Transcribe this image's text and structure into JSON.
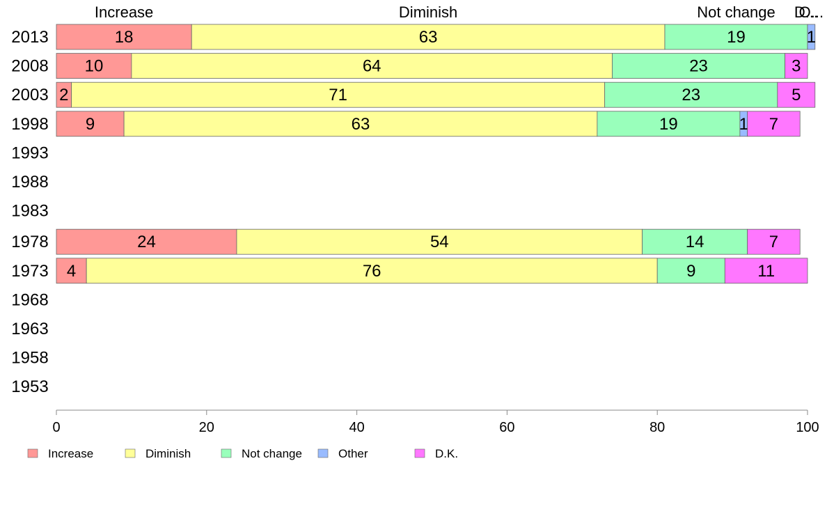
{
  "chart_data": {
    "type": "bar",
    "orientation": "horizontal",
    "stacked": true,
    "categories": [
      "2013",
      "2008",
      "2003",
      "1998",
      "1993",
      "1988",
      "1983",
      "1978",
      "1973",
      "1968",
      "1963",
      "1958",
      "1953"
    ],
    "series": [
      {
        "name": "Increase",
        "color": "#ff9896",
        "values": [
          18,
          10,
          2,
          9,
          null,
          null,
          null,
          24,
          4,
          null,
          null,
          null,
          null
        ]
      },
      {
        "name": "Diminish",
        "color": "#ffff99",
        "values": [
          63,
          64,
          71,
          63,
          null,
          null,
          null,
          54,
          76,
          null,
          null,
          null,
          null
        ]
      },
      {
        "name": "Not change",
        "color": "#99ffbb",
        "values": [
          19,
          23,
          23,
          19,
          null,
          null,
          null,
          14,
          9,
          null,
          null,
          null,
          null
        ]
      },
      {
        "name": "Other",
        "color": "#99bbff",
        "values": [
          1,
          null,
          null,
          1,
          null,
          null,
          null,
          null,
          null,
          null,
          null,
          null,
          null
        ]
      },
      {
        "name": "D.K.",
        "color": "#ff77ff",
        "values": [
          null,
          3,
          5,
          7,
          null,
          null,
          null,
          7,
          11,
          null,
          null,
          null,
          null
        ]
      }
    ],
    "top_labels": [
      "Increase",
      "Diminish",
      "Not change",
      "O...",
      "D..."
    ],
    "xlim": [
      0,
      100
    ],
    "xticks": [
      "0",
      "20",
      "40",
      "60",
      "80",
      "100"
    ],
    "grid": false,
    "legend": "bottom"
  }
}
